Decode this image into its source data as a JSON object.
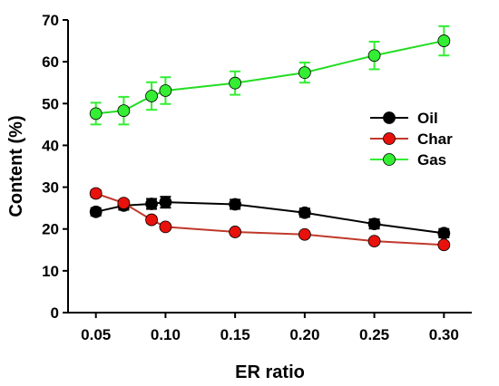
{
  "chart_data": {
    "type": "line",
    "title": "",
    "xlabel": "ER ratio",
    "ylabel": "Content (%)",
    "x": [
      0.05,
      0.07,
      0.09,
      0.1,
      0.15,
      0.2,
      0.25,
      0.3
    ],
    "x_tick_labels": [
      "0.05",
      "0.10",
      "0.15",
      "0.20",
      "0.25",
      "0.30"
    ],
    "x_ticks": [
      0.05,
      0.1,
      0.15,
      0.2,
      0.25,
      0.3
    ],
    "xlim": [
      0.03,
      0.32
    ],
    "y_tick_labels": [
      "0",
      "10",
      "20",
      "30",
      "40",
      "50",
      "60",
      "70"
    ],
    "y_ticks": [
      0,
      10,
      20,
      30,
      40,
      50,
      60,
      70
    ],
    "ylim": [
      0,
      70
    ],
    "grid": false,
    "legend_position": "right",
    "series": [
      {
        "name": "Oil",
        "color": "#000000",
        "values": [
          24.1,
          25.6,
          26.0,
          26.4,
          25.9,
          23.9,
          21.2,
          19.0
        ],
        "errors": [
          0.9,
          1.0,
          1.2,
          1.3,
          1.1,
          1.0,
          1.1,
          1.0
        ]
      },
      {
        "name": "Char",
        "color": "#e8120c",
        "values": [
          28.5,
          26.2,
          22.2,
          20.5,
          19.3,
          18.7,
          17.1,
          16.2
        ],
        "errors": [
          0.8,
          0.7,
          0.7,
          0.6,
          0.6,
          0.6,
          0.6,
          0.6
        ]
      },
      {
        "name": "Gas",
        "color": "#33ee33",
        "values": [
          47.6,
          48.3,
          51.8,
          53.1,
          54.9,
          57.4,
          61.5,
          65.0
        ],
        "errors": [
          2.6,
          3.3,
          3.3,
          3.2,
          2.8,
          2.4,
          3.3,
          3.5
        ]
      }
    ]
  }
}
